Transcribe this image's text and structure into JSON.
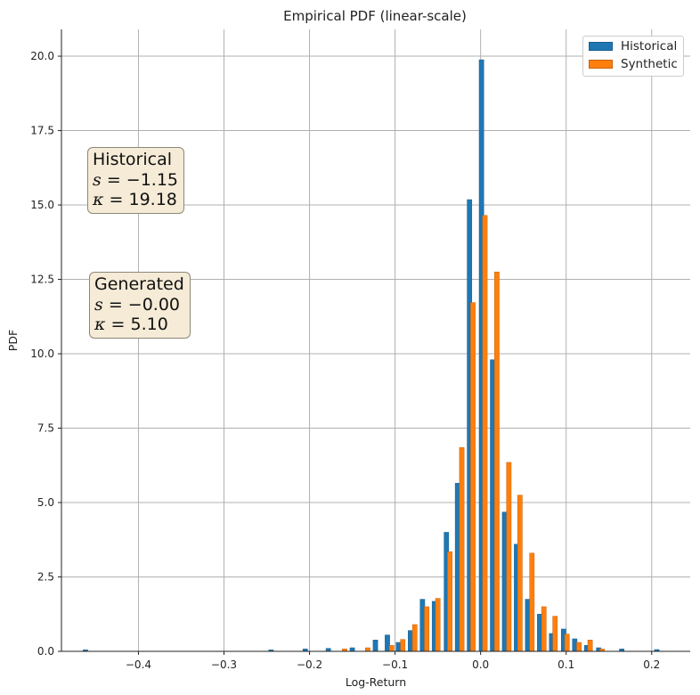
{
  "chart_data": {
    "type": "bar",
    "title": "Empirical PDF (linear-scale)",
    "xlabel": "Log-Return",
    "ylabel": "PDF",
    "xlim": [
      -0.49,
      0.245
    ],
    "ylim": [
      0,
      20.9
    ],
    "xticks": [
      -0.4,
      -0.3,
      -0.2,
      -0.1,
      0.0,
      0.1,
      0.2
    ],
    "xtick_labels": [
      "−0.4",
      "−0.3",
      "−0.2",
      "−0.1",
      "0.0",
      "0.1",
      "0.2"
    ],
    "yticks": [
      0,
      2.5,
      5,
      7.5,
      10,
      12.5,
      15,
      17.5,
      20
    ],
    "ytick_labels": [
      "0.0",
      "2.5",
      "5.0",
      "7.5",
      "10.0",
      "12.5",
      "15.0",
      "17.5",
      "20.0"
    ],
    "grid": true,
    "legend_position": "top-right",
    "series": [
      {
        "name": "Historical",
        "color": "#1f77b4",
        "bins": [
          [
            -0.462,
            0.05
          ],
          [
            -0.245,
            0.05
          ],
          [
            -0.205,
            0.08
          ],
          [
            -0.178,
            0.1
          ],
          [
            -0.15,
            0.12
          ],
          [
            -0.123,
            0.38
          ],
          [
            -0.109,
            0.55
          ],
          [
            -0.096,
            0.3
          ],
          [
            -0.082,
            0.7
          ],
          [
            -0.068,
            1.75
          ],
          [
            -0.054,
            1.68
          ],
          [
            -0.04,
            4.0
          ],
          [
            -0.027,
            5.65
          ],
          [
            -0.013,
            15.18
          ],
          [
            0.001,
            19.88
          ],
          [
            0.014,
            9.8
          ],
          [
            0.028,
            4.68
          ],
          [
            0.042,
            3.6
          ],
          [
            0.055,
            1.75
          ],
          [
            0.069,
            1.25
          ],
          [
            0.083,
            0.6
          ],
          [
            0.097,
            0.75
          ],
          [
            0.11,
            0.42
          ],
          [
            0.124,
            0.2
          ],
          [
            0.138,
            0.12
          ],
          [
            0.165,
            0.08
          ],
          [
            0.206,
            0.06
          ]
        ]
      },
      {
        "name": "Synthetic",
        "color": "#ff7f0e",
        "bins": [
          [
            -0.159,
            0.08
          ],
          [
            -0.132,
            0.12
          ],
          [
            -0.104,
            0.2
          ],
          [
            -0.091,
            0.4
          ],
          [
            -0.077,
            0.9
          ],
          [
            -0.063,
            1.5
          ],
          [
            -0.05,
            1.78
          ],
          [
            -0.036,
            3.35
          ],
          [
            -0.022,
            6.85
          ],
          [
            -0.009,
            11.72
          ],
          [
            0.005,
            14.65
          ],
          [
            0.019,
            12.75
          ],
          [
            0.033,
            6.35
          ],
          [
            0.046,
            5.25
          ],
          [
            0.06,
            3.3
          ],
          [
            0.074,
            1.5
          ],
          [
            0.087,
            1.18
          ],
          [
            0.101,
            0.58
          ],
          [
            0.115,
            0.3
          ],
          [
            0.128,
            0.38
          ],
          [
            0.142,
            0.08
          ]
        ]
      }
    ],
    "annotations": [
      {
        "title": "Historical",
        "skew_symbol": "s",
        "skew_value": "= −1.15",
        "kurt_symbol": "κ",
        "kurt_value": "= 19.18"
      },
      {
        "title": "Generated",
        "skew_symbol": "s",
        "skew_value": "= −0.00",
        "kurt_symbol": "κ",
        "kurt_value": "= 5.10"
      }
    ]
  },
  "colors": {
    "historical": "#1f77b4",
    "synthetic": "#ff7f0e",
    "grid": "#b0b0b0",
    "stat_box_bg": "#f5ebd7"
  }
}
